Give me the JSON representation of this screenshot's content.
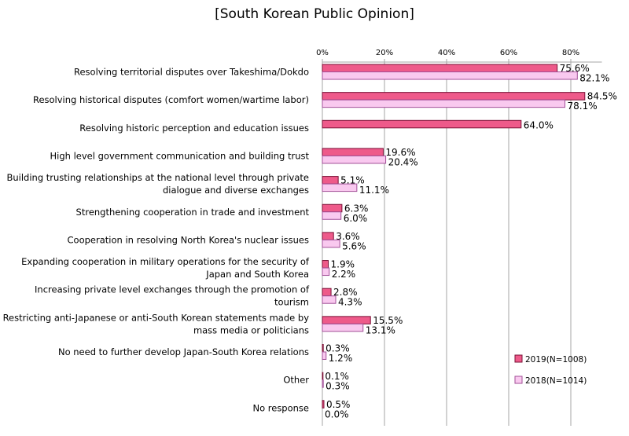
{
  "chart_data": {
    "type": "bar",
    "orientation": "horizontal",
    "title": "[South Korean Public Opinion]",
    "xlim": [
      0,
      90
    ],
    "x_ticks": [
      0,
      20,
      40,
      60,
      80
    ],
    "x_tick_labels": [
      "0%",
      "20%",
      "40%",
      "60%",
      "80%"
    ],
    "grid": true,
    "legend_position": "bottom-right",
    "categories": [
      [
        "Resolving territorial disputes over Takeshima/Dokdo"
      ],
      [
        "Resolving historical disputes (comfort women/wartime labor)"
      ],
      [
        "Resolving historic perception and education issues"
      ],
      [
        "High level government communication and building trust"
      ],
      [
        "Building trusting relationships at the national level through private",
        "dialogue and diverse exchanges"
      ],
      [
        "Strengthening cooperation in trade and investment"
      ],
      [
        "Cooperation in resolving North Korea's nuclear issues"
      ],
      [
        "Expanding cooperation in military operations for the security of",
        "Japan and South Korea"
      ],
      [
        "Increasing private level exchanges through the promotion of",
        "tourism"
      ],
      [
        "Restricting anti-Japanese or anti-South Korean statements made by",
        "mass media or politicians"
      ],
      [
        "No need to further develop Japan-South Korea relations"
      ],
      [
        "Other"
      ],
      [
        "No response"
      ]
    ],
    "series": [
      {
        "name": "2019(N=1008)",
        "color": "#ee5a8a",
        "values": [
          75.6,
          84.5,
          64.0,
          19.6,
          5.1,
          6.3,
          3.6,
          1.9,
          2.8,
          15.5,
          0.3,
          0.1,
          0.5
        ],
        "labels": [
          "75.6%",
          "84.5%",
          "64.0%",
          "19.6%",
          "5.1%",
          "6.3%",
          "3.6%",
          "1.9%",
          "2.8%",
          "15.5%",
          "0.3%",
          "0.1%",
          "0.5%"
        ]
      },
      {
        "name": "2018(N=1014)",
        "color": "#f9c9ef",
        "values": [
          82.1,
          78.1,
          null,
          20.4,
          11.1,
          6.0,
          5.6,
          2.2,
          4.3,
          13.1,
          1.2,
          0.3,
          0.0
        ],
        "labels": [
          "82.1%",
          "78.1%",
          "",
          "20.4%",
          "11.1%",
          "6.0%",
          "5.6%",
          "2.2%",
          "4.3%",
          "13.1%",
          "1.2%",
          "0.3%",
          "0.0%"
        ]
      }
    ]
  }
}
